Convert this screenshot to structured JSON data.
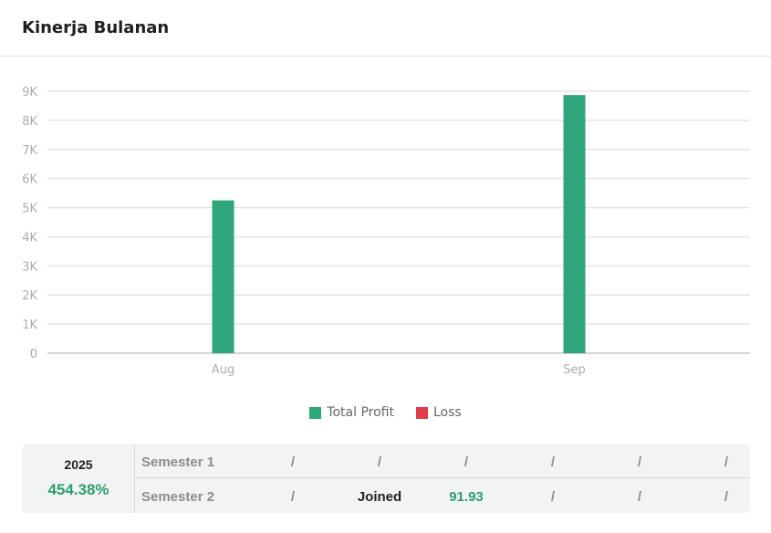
{
  "header": {
    "title": "Kinerja Bulanan"
  },
  "colors": {
    "profit": "#2fa57a",
    "loss": "#e03c4a",
    "grid": "#e3e4e6",
    "axis_text": "#a9abae"
  },
  "chart_data": {
    "type": "bar",
    "categories": [
      "Aug",
      "Sep"
    ],
    "series": [
      {
        "name": "Total Profit",
        "values": [
          5250,
          8870
        ]
      },
      {
        "name": "Loss",
        "values": [
          0,
          0
        ]
      }
    ],
    "ylim": [
      0,
      9000
    ],
    "yticks": [
      "0",
      "1K",
      "2K",
      "3K",
      "4K",
      "5K",
      "6K",
      "7K",
      "8K",
      "9K"
    ],
    "grid": true,
    "legend": "bottom"
  },
  "legend": {
    "items": [
      "Total Profit",
      "Loss"
    ]
  },
  "summary": {
    "year": "2025",
    "percent": "454.38%",
    "rows": [
      {
        "label": "Semester 1",
        "cells": [
          "/",
          "/",
          "/",
          "/",
          "/",
          "/"
        ]
      },
      {
        "label": "Semester 2",
        "cells": [
          "/",
          "Joined",
          "91.93",
          "/",
          "/",
          "/"
        ]
      }
    ]
  }
}
